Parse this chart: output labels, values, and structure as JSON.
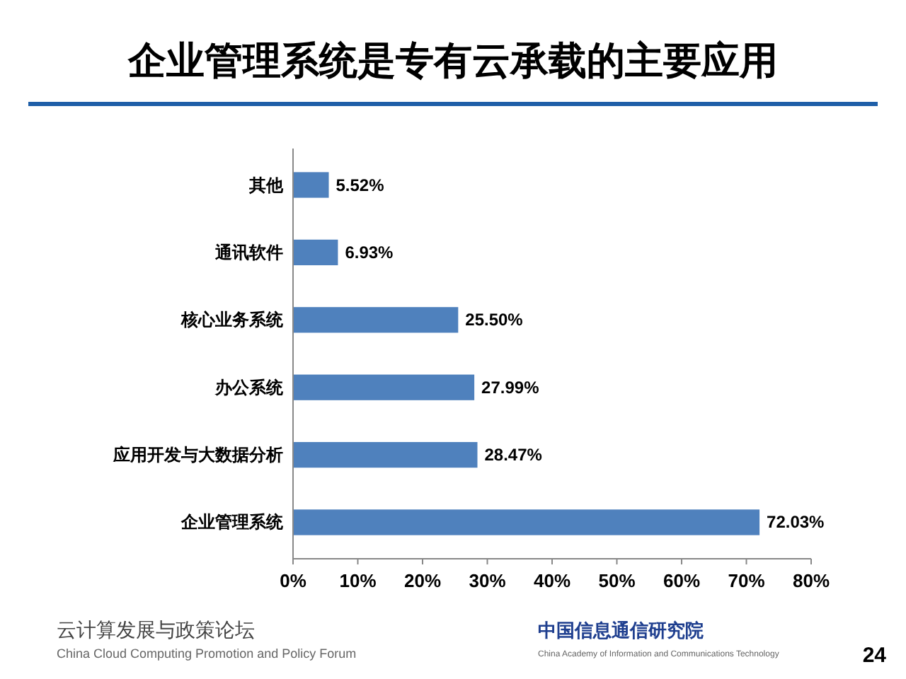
{
  "chart_data": {
    "type": "bar",
    "orientation": "horizontal",
    "title": "企业管理系统是专有云承载的主要应用",
    "categories": [
      "其他",
      "通讯软件",
      "核心业务系统",
      "办公系统",
      "应用开发与大数据分析",
      "企业管理系统"
    ],
    "values": [
      5.52,
      6.93,
      25.5,
      27.99,
      28.47,
      72.03
    ],
    "value_labels": [
      "5.52%",
      "6.93%",
      "25.50%",
      "27.99%",
      "28.47%",
      "72.03%"
    ],
    "color": "#4f81bd",
    "xlim": [
      0,
      80
    ],
    "xticks": [
      {
        "value": 0,
        "label": "0%"
      },
      {
        "value": 10,
        "label": "10%"
      },
      {
        "value": 20,
        "label": "20%"
      },
      {
        "value": 30,
        "label": "30%"
      },
      {
        "value": 40,
        "label": "40%"
      },
      {
        "value": 50,
        "label": "50%"
      },
      {
        "value": 60,
        "label": "60%"
      },
      {
        "value": 70,
        "label": "70%"
      },
      {
        "value": 80,
        "label": "80%"
      }
    ],
    "grid": false,
    "annotations": [
      "云计算发展与政策论坛",
      "China Cloud Computing Promotion and Policy Forum",
      "中国信息通信研究院",
      "China Academy of Information and Communications Technology",
      "24"
    ]
  }
}
